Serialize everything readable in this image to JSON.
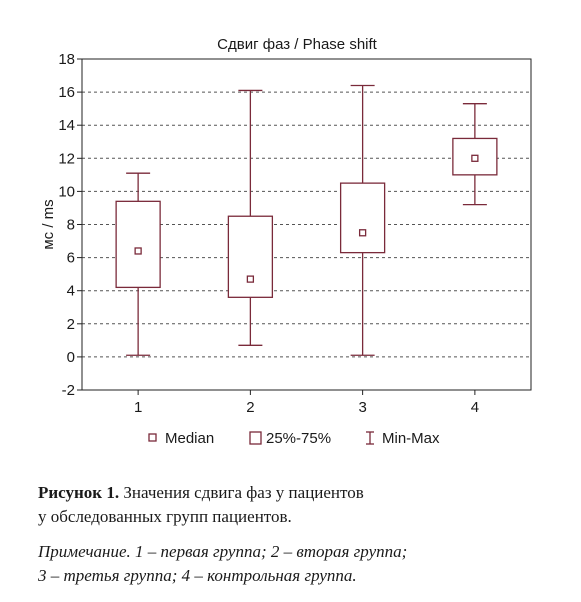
{
  "chart_data": {
    "type": "boxplot",
    "title": "Сдвиг фаз / Phase shift",
    "ylabel": "мс / ms",
    "xlabel": "",
    "categories": [
      "1",
      "2",
      "3",
      "4"
    ],
    "ylim": [
      -2,
      18
    ],
    "yticks": [
      "18",
      "16",
      "14",
      "12",
      "10",
      "8",
      "6",
      "4",
      "2",
      "0",
      "-2"
    ],
    "ytick_values": [
      18,
      16,
      14,
      12,
      10,
      8,
      6,
      4,
      2,
      0,
      -2
    ],
    "grid": true,
    "boxes": [
      {
        "category": "1",
        "min": 0.1,
        "q1": 4.2,
        "median": 6.4,
        "q3": 9.4,
        "max": 11.1
      },
      {
        "category": "2",
        "min": 0.7,
        "q1": 3.6,
        "median": 4.7,
        "q3": 8.5,
        "max": 16.1
      },
      {
        "category": "3",
        "min": 0.1,
        "q1": 6.3,
        "median": 7.5,
        "q3": 10.5,
        "max": 16.4
      },
      {
        "category": "4",
        "min": 9.2,
        "q1": 11.0,
        "median": 12.0,
        "q3": 13.2,
        "max": 15.3
      }
    ],
    "legend": {
      "placement": "bottom",
      "items": [
        {
          "symbol": "square-point",
          "label": "Median"
        },
        {
          "symbol": "box",
          "label": "25%-75%"
        },
        {
          "symbol": "whisker",
          "label": "Min-Max"
        }
      ]
    },
    "colors": {
      "box": "#7a2a3a",
      "grid": "#555555"
    }
  },
  "caption": {
    "figure_label": "Рисунок 1.",
    "text_line1": " Значения сдвига фаз у пациентов",
    "text_line2": "у обследованных групп пациентов.",
    "note_line1": "Примечание. 1 – первая группа; 2 – вторая группа;",
    "note_line2": "3 – третья группа; 4 – контрольная группа."
  }
}
